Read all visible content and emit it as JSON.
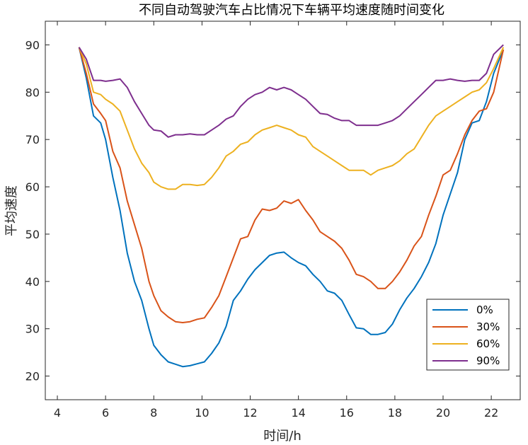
{
  "chart_data": {
    "type": "line",
    "title": "不同自动驾驶汽车占比情况下车辆平均速度随时间变化",
    "xlabel": "时间/h",
    "ylabel": "平均速度",
    "xlim": [
      3.5,
      23.2
    ],
    "ylim": [
      15,
      95
    ],
    "xticks": [
      4,
      6,
      8,
      10,
      12,
      14,
      16,
      18,
      20,
      22
    ],
    "yticks": [
      20,
      30,
      40,
      50,
      60,
      70,
      80,
      90
    ],
    "grid": false,
    "legend_position": "bottom-right",
    "x": [
      4.9,
      5.2,
      5.5,
      5.8,
      6.0,
      6.3,
      6.6,
      6.9,
      7.2,
      7.5,
      7.8,
      8.0,
      8.3,
      8.6,
      8.9,
      9.2,
      9.5,
      9.8,
      10.1,
      10.4,
      10.7,
      11.0,
      11.3,
      11.6,
      11.9,
      12.2,
      12.5,
      12.8,
      13.1,
      13.4,
      13.7,
      14.0,
      14.3,
      14.6,
      14.9,
      15.2,
      15.5,
      15.8,
      16.1,
      16.4,
      16.7,
      17.0,
      17.3,
      17.6,
      17.9,
      18.2,
      18.5,
      18.8,
      19.1,
      19.4,
      19.7,
      20.0,
      20.3,
      20.6,
      20.9,
      21.2,
      21.5,
      21.8,
      22.1,
      22.5
    ],
    "series": [
      {
        "name": "0%",
        "color": "#0072BD",
        "values": [
          89.5,
          83,
          75,
          73.5,
          70,
          62,
          55,
          46,
          40,
          36,
          30,
          26.5,
          24.5,
          23,
          22.5,
          22,
          22.2,
          22.6,
          23,
          24.8,
          27,
          30.5,
          36,
          38,
          40.5,
          42.5,
          44,
          45.5,
          46,
          46.2,
          45,
          44,
          43.3,
          41.5,
          40,
          38,
          37.5,
          36,
          33,
          30.2,
          30,
          28.8,
          28.8,
          29.2,
          31,
          34,
          36.5,
          38.5,
          41,
          44,
          48,
          54,
          58.5,
          63,
          70,
          73.5,
          74,
          78,
          84,
          89
        ]
      },
      {
        "name": "30%",
        "color": "#D95319",
        "values": [
          89.5,
          84,
          77.5,
          75.5,
          74,
          67.5,
          64,
          57,
          52,
          47,
          40,
          37,
          33.8,
          32.5,
          31.5,
          31.3,
          31.5,
          32,
          32.3,
          34.5,
          37,
          41,
          45,
          49,
          49.5,
          53,
          55.3,
          55,
          55.5,
          57,
          56.5,
          57.3,
          55,
          53,
          50.5,
          49.5,
          48.5,
          47,
          44.5,
          41.5,
          41,
          40,
          38.5,
          38.5,
          40,
          42,
          44.5,
          47.5,
          49.5,
          54,
          58,
          62.5,
          63.5,
          67,
          71,
          74,
          76,
          76.5,
          80,
          89
        ]
      },
      {
        "name": "60%",
        "color": "#EDB120",
        "values": [
          89.5,
          86,
          80,
          79.5,
          78.5,
          77.5,
          76,
          72,
          68,
          65,
          63,
          61,
          60,
          59.5,
          59.5,
          60.5,
          60.5,
          60.3,
          60.5,
          62,
          64,
          66.5,
          67.5,
          69,
          69.5,
          71,
          72,
          72.5,
          73,
          72.5,
          72,
          71,
          70.5,
          68.5,
          67.5,
          66.5,
          65.5,
          64.5,
          63.5,
          63.5,
          63.5,
          62.5,
          63.5,
          64,
          64.5,
          65.5,
          67,
          68,
          70.5,
          73,
          75,
          76,
          77,
          78,
          79,
          80,
          80.5,
          82,
          85,
          89.5
        ]
      },
      {
        "name": "90%",
        "color": "#7E2F8E",
        "values": [
          89.5,
          87,
          82.5,
          82.5,
          82.3,
          82.5,
          82.8,
          81,
          78,
          75.5,
          73,
          72,
          71.8,
          70.5,
          71,
          71,
          71.2,
          71,
          71,
          72,
          73,
          74.3,
          75,
          77,
          78.5,
          79.5,
          80,
          81,
          80.5,
          81,
          80.5,
          79.5,
          78.5,
          77,
          75.5,
          75.3,
          74.5,
          74,
          74,
          73,
          73,
          73,
          73,
          73.5,
          74,
          75,
          76.5,
          78,
          79.5,
          81,
          82.5,
          82.5,
          82.8,
          82.5,
          82.3,
          82.5,
          82.5,
          84,
          88,
          90
        ]
      }
    ]
  }
}
